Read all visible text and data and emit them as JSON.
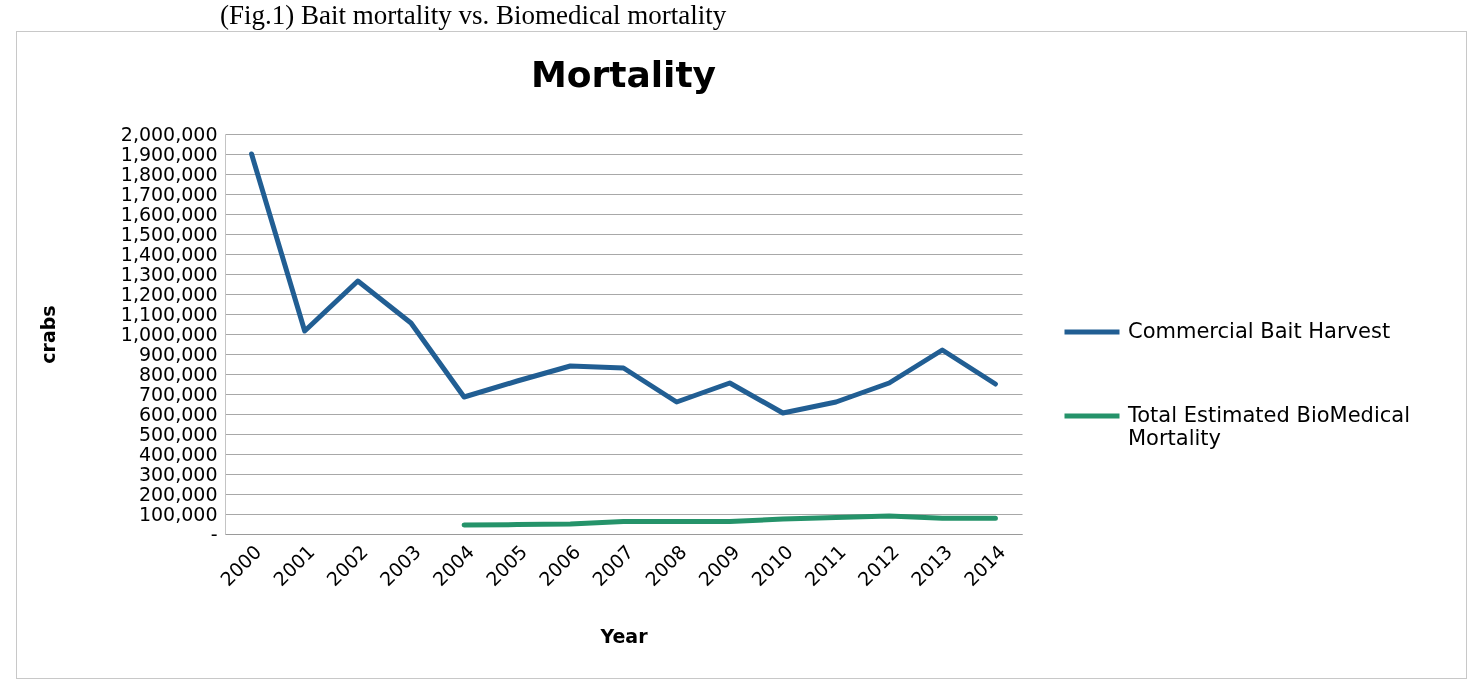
{
  "chart_data": {
    "type": "line",
    "title": "Mortality",
    "xlabel": "Year",
    "ylabel": "crabs",
    "annotations": [
      "(Fig.1) Bait mortality vs. Biomedical mortality"
    ],
    "categories": [
      "2000",
      "2001",
      "2002",
      "2003",
      "2004",
      "2005",
      "2006",
      "2007",
      "2008",
      "2009",
      "2010",
      "2011",
      "2012",
      "2013",
      "2014"
    ],
    "series": [
      {
        "name": "Commercial Bait Harvest",
        "color": "#215e93",
        "values": [
          1900000,
          1015000,
          1265000,
          1055000,
          685000,
          765000,
          840000,
          830000,
          660000,
          755000,
          605000,
          660000,
          755000,
          920000,
          750000
        ]
      },
      {
        "name": "Total Estimated BioMedical Mortality",
        "color": "#25936a",
        "values": [
          null,
          null,
          null,
          null,
          45000,
          47000,
          50000,
          62000,
          63000,
          62000,
          75000,
          82000,
          90000,
          79000,
          79000
        ]
      }
    ],
    "ylim": [
      0,
      2000000
    ],
    "yticks": [
      {
        "value": 0,
        "label": "-"
      },
      {
        "value": 100000,
        "label": "100,000"
      },
      {
        "value": 200000,
        "label": "200,000"
      },
      {
        "value": 300000,
        "label": "300,000"
      },
      {
        "value": 400000,
        "label": "400,000"
      },
      {
        "value": 500000,
        "label": "500,000"
      },
      {
        "value": 600000,
        "label": "600,000"
      },
      {
        "value": 700000,
        "label": "700,000"
      },
      {
        "value": 800000,
        "label": "800,000"
      },
      {
        "value": 900000,
        "label": "900,000"
      },
      {
        "value": 1000000,
        "label": "1,000,000"
      },
      {
        "value": 1100000,
        "label": "1,100,000"
      },
      {
        "value": 1200000,
        "label": "1,200,000"
      },
      {
        "value": 1300000,
        "label": "1,300,000"
      },
      {
        "value": 1400000,
        "label": "1,400,000"
      },
      {
        "value": 1500000,
        "label": "1,500,000"
      },
      {
        "value": 1600000,
        "label": "1,600,000"
      },
      {
        "value": 1700000,
        "label": "1,700,000"
      },
      {
        "value": 1800000,
        "label": "1,800,000"
      },
      {
        "value": 1900000,
        "label": "1,900,000"
      },
      {
        "value": 2000000,
        "label": "2,000,000"
      }
    ],
    "grid": "y",
    "legend": "right"
  }
}
